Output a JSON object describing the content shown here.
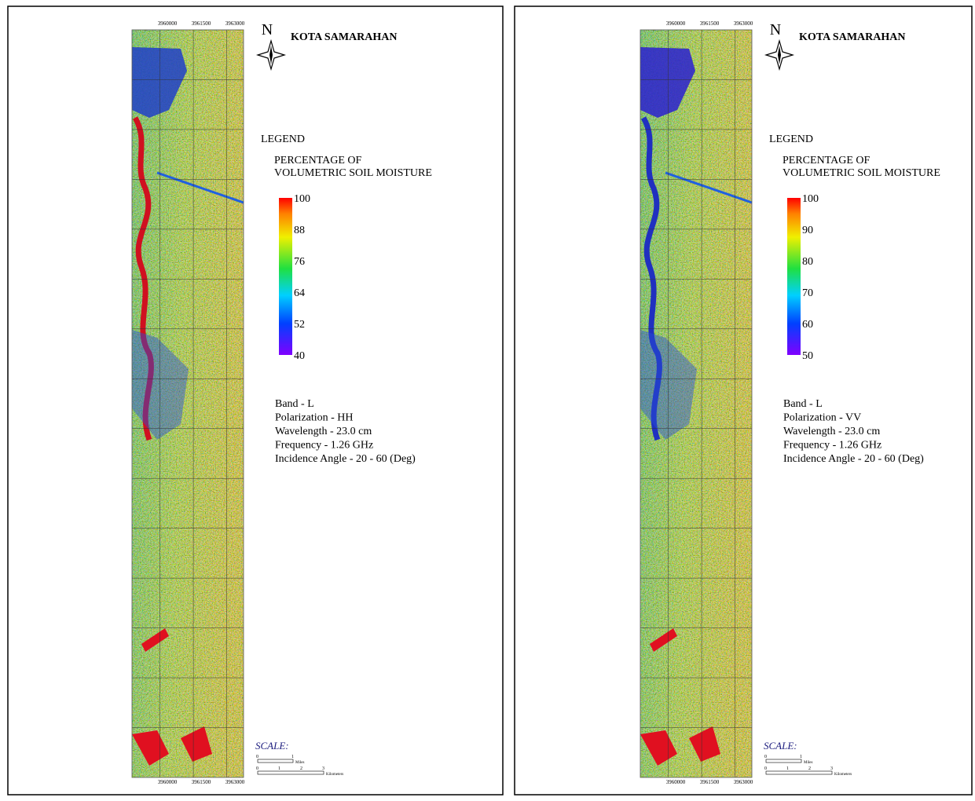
{
  "panels": [
    {
      "north": "N",
      "title": "KOTA SAMARAHAN",
      "legend": {
        "heading": "LEGEND",
        "title_lines": [
          "PERCENTAGE OF",
          "VOLUMETRIC SOIL MOISTURE"
        ],
        "ticks": [
          100,
          88,
          76,
          64,
          52,
          40
        ]
      },
      "info": [
        "Band - L",
        "Polarization - HH",
        "Wavelength - 23.0 cm",
        "Frequency - 1.26 GHz",
        "Incidence Angle - 20 - 60 (Deg)"
      ],
      "scale": {
        "label": "SCALE:",
        "miles_label": "Miles",
        "km_label": "Kilometers",
        "miles_ticks": [
          0,
          1
        ],
        "km_ticks": [
          0,
          1,
          2,
          3
        ]
      },
      "x_labels": [
        "3960000",
        "3961500",
        "3963000"
      ]
    },
    {
      "north": "N",
      "title": "KOTA SAMARAHAN",
      "legend": {
        "heading": "LEGEND",
        "title_lines": [
          "PERCENTAGE OF",
          "VOLUMETRIC SOIL MOISTURE"
        ],
        "ticks": [
          100,
          90,
          80,
          70,
          60,
          50
        ]
      },
      "info": [
        "Band - L",
        "Polarization - VV",
        "Wavelength - 23.0 cm",
        "Frequency - 1.26 GHz",
        "Incidence Angle - 20 - 60 (Deg)"
      ],
      "scale": {
        "label": "SCALE:",
        "miles_label": "Miles",
        "km_label": "Kilometers",
        "miles_ticks": [
          0,
          1
        ],
        "km_ticks": [
          0,
          1,
          2,
          3
        ]
      },
      "x_labels": [
        "3960000",
        "3961500",
        "3963000"
      ]
    }
  ]
}
